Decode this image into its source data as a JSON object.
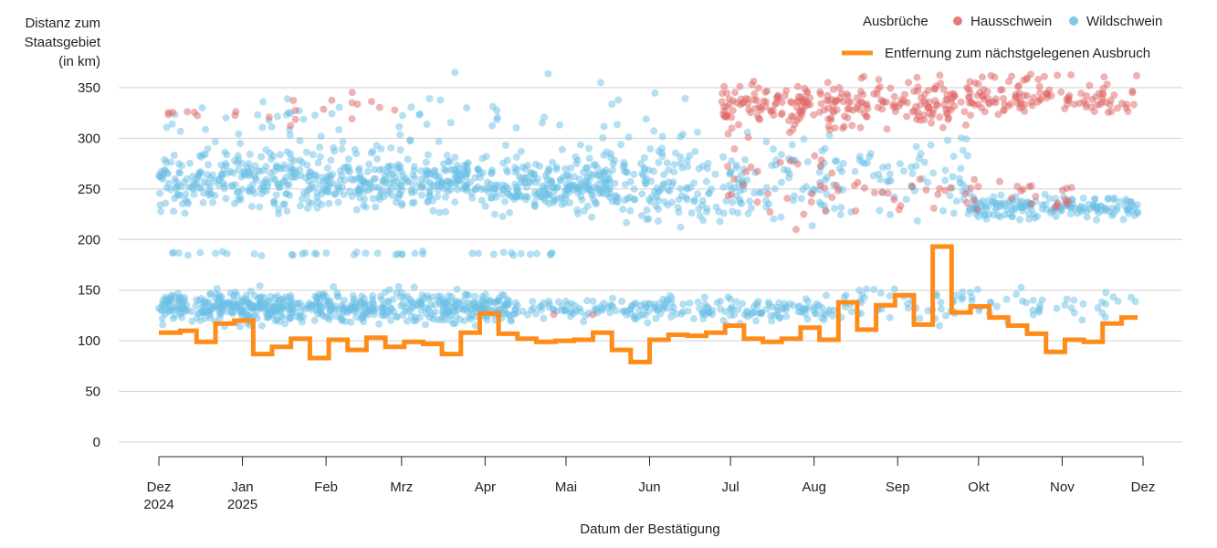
{
  "chart_data": {
    "type": "scatter",
    "ylabel": [
      "Distanz zum",
      "Staatsgebiet",
      "(in km)"
    ],
    "xlabel": "Datum der Bestätigung",
    "ylim": [
      0,
      365
    ],
    "yticks": [
      0,
      50,
      100,
      150,
      200,
      250,
      300,
      350
    ],
    "x_range_days": [
      0,
      365
    ],
    "xticks": [
      {
        "day": 0,
        "label": "Dez",
        "sub": "2024"
      },
      {
        "day": 31,
        "label": "Jan",
        "sub": "2025"
      },
      {
        "day": 62,
        "label": "Feb",
        "sub": ""
      },
      {
        "day": 90,
        "label": "Mrz",
        "sub": ""
      },
      {
        "day": 121,
        "label": "Apr",
        "sub": ""
      },
      {
        "day": 151,
        "label": "Mai",
        "sub": ""
      },
      {
        "day": 182,
        "label": "Jun",
        "sub": ""
      },
      {
        "day": 212,
        "label": "Jul",
        "sub": ""
      },
      {
        "day": 243,
        "label": "Aug",
        "sub": ""
      },
      {
        "day": 274,
        "label": "Sep",
        "sub": ""
      },
      {
        "day": 304,
        "label": "Okt",
        "sub": ""
      },
      {
        "day": 335,
        "label": "Nov",
        "sub": ""
      },
      {
        "day": 365,
        "label": "Dez",
        "sub": ""
      }
    ],
    "legend": {
      "title": "Ausbrüche",
      "entries": [
        {
          "name": "Hausschwein",
          "color": "#e06666"
        },
        {
          "name": "Wildschwein",
          "color": "#6cc0e5"
        }
      ],
      "line_label": "Entfernung zum nächstgelegenen Ausbruch",
      "line_color": "#ff8c1a"
    },
    "series": [
      {
        "name": "Wildschwein",
        "color": "#6cc0e5",
        "clusters": [
          {
            "from": 0,
            "to": 170,
            "center": 256,
            "spread": 22,
            "count": 700
          },
          {
            "from": 170,
            "to": 218,
            "center": 252,
            "spread": 28,
            "count": 140
          },
          {
            "from": 218,
            "to": 258,
            "center": 262,
            "spread": 40,
            "count": 70
          },
          {
            "from": 258,
            "to": 300,
            "center": 265,
            "spread": 38,
            "count": 60
          },
          {
            "from": 300,
            "to": 363,
            "center": 232,
            "spread": 10,
            "count": 170
          },
          {
            "from": 0,
            "to": 130,
            "center": 133,
            "spread": 12,
            "count": 600
          },
          {
            "from": 130,
            "to": 250,
            "center": 131,
            "spread": 10,
            "count": 220
          },
          {
            "from": 250,
            "to": 363,
            "center": 137,
            "spread": 14,
            "count": 90
          },
          {
            "from": 5,
            "to": 150,
            "center": 186,
            "spread": 1.5,
            "count": 40
          },
          {
            "from": 0,
            "to": 200,
            "center": 300,
            "spread": 45,
            "count": 120
          }
        ]
      },
      {
        "name": "Hausschwein",
        "color": "#e06666",
        "clusters": [
          {
            "from": 0,
            "to": 30,
            "center": 325,
            "spread": 4,
            "count": 8
          },
          {
            "from": 40,
            "to": 90,
            "center": 330,
            "spread": 18,
            "count": 14
          },
          {
            "from": 208,
            "to": 362,
            "center": 338,
            "spread": 12,
            "count": 280
          },
          {
            "from": 208,
            "to": 300,
            "center": 320,
            "spread": 12,
            "count": 70
          },
          {
            "from": 210,
            "to": 250,
            "center": 260,
            "spread": 30,
            "count": 30
          },
          {
            "from": 250,
            "to": 340,
            "center": 246,
            "spread": 14,
            "count": 45
          },
          {
            "from": 250,
            "to": 363,
            "center": 360,
            "spread": 3,
            "count": 20
          },
          {
            "from": 145,
            "to": 170,
            "center": 128,
            "spread": 2,
            "count": 2
          }
        ]
      }
    ],
    "line": {
      "name": "Entfernung zum nächstgelegenen Ausbruch",
      "steps": [
        [
          0,
          108
        ],
        [
          8,
          108
        ],
        [
          8,
          110
        ],
        [
          14,
          110
        ],
        [
          14,
          99
        ],
        [
          21,
          99
        ],
        [
          21,
          117
        ],
        [
          28,
          117
        ],
        [
          28,
          120
        ],
        [
          35,
          120
        ],
        [
          35,
          87
        ],
        [
          42,
          87
        ],
        [
          42,
          94
        ],
        [
          49,
          94
        ],
        [
          49,
          102
        ],
        [
          56,
          102
        ],
        [
          56,
          83
        ],
        [
          63,
          83
        ],
        [
          63,
          101
        ],
        [
          70,
          101
        ],
        [
          70,
          91
        ],
        [
          77,
          91
        ],
        [
          77,
          103
        ],
        [
          84,
          103
        ],
        [
          84,
          94
        ],
        [
          91,
          94
        ],
        [
          91,
          99
        ],
        [
          98,
          99
        ],
        [
          98,
          97
        ],
        [
          105,
          97
        ],
        [
          105,
          87
        ],
        [
          112,
          87
        ],
        [
          112,
          108
        ],
        [
          119,
          108
        ],
        [
          119,
          127
        ],
        [
          126,
          127
        ],
        [
          126,
          107
        ],
        [
          133,
          107
        ],
        [
          133,
          102
        ],
        [
          140,
          102
        ],
        [
          140,
          99
        ],
        [
          147,
          99
        ],
        [
          147,
          100
        ],
        [
          154,
          100
        ],
        [
          154,
          101
        ],
        [
          161,
          101
        ],
        [
          161,
          108
        ],
        [
          168,
          108
        ],
        [
          168,
          91
        ],
        [
          175,
          91
        ],
        [
          175,
          79
        ],
        [
          182,
          79
        ],
        [
          182,
          101
        ],
        [
          189,
          101
        ],
        [
          189,
          106
        ],
        [
          196,
          106
        ],
        [
          196,
          105
        ],
        [
          203,
          105
        ],
        [
          203,
          108
        ],
        [
          210,
          108
        ],
        [
          210,
          115
        ],
        [
          217,
          115
        ],
        [
          217,
          102
        ],
        [
          224,
          102
        ],
        [
          224,
          99
        ],
        [
          231,
          99
        ],
        [
          231,
          102
        ],
        [
          238,
          102
        ],
        [
          238,
          113
        ],
        [
          245,
          113
        ],
        [
          245,
          101
        ],
        [
          252,
          101
        ],
        [
          252,
          138
        ],
        [
          259,
          138
        ],
        [
          259,
          111
        ],
        [
          266,
          111
        ],
        [
          266,
          135
        ],
        [
          273,
          135
        ],
        [
          273,
          145
        ],
        [
          280,
          145
        ],
        [
          280,
          116
        ],
        [
          287,
          116
        ],
        [
          287,
          193
        ],
        [
          294,
          193
        ],
        [
          294,
          128
        ],
        [
          301,
          128
        ],
        [
          301,
          134
        ],
        [
          308,
          134
        ],
        [
          308,
          123
        ],
        [
          315,
          123
        ],
        [
          315,
          115
        ],
        [
          322,
          115
        ],
        [
          322,
          107
        ],
        [
          329,
          107
        ],
        [
          329,
          89
        ],
        [
          336,
          89
        ],
        [
          336,
          101
        ],
        [
          343,
          101
        ],
        [
          343,
          99
        ],
        [
          350,
          99
        ],
        [
          350,
          117
        ],
        [
          357,
          117
        ],
        [
          357,
          123
        ],
        [
          363,
          123
        ]
      ]
    }
  }
}
